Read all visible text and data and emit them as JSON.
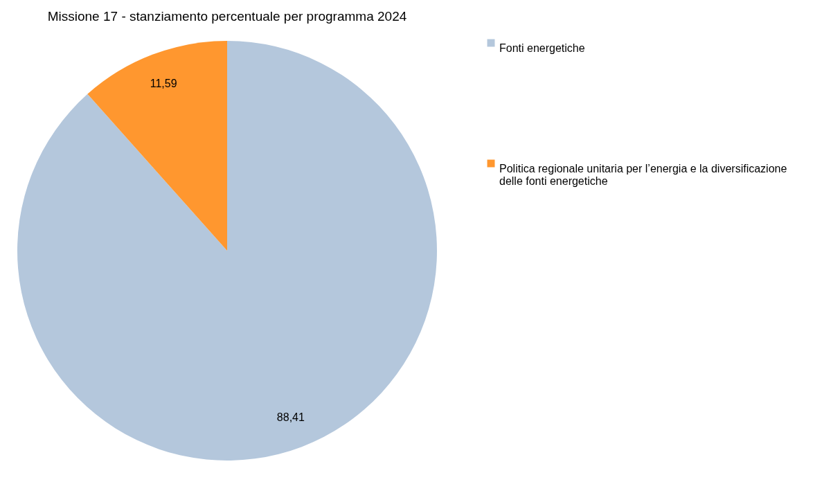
{
  "chart_data": {
    "type": "pie",
    "title": "Missione 17 - stanziamento percentuale per programma 2024",
    "categories": [
      "Fonti energetiche",
      "Politica regionale unitaria per l’energia e la diversificazione delle fonti energetiche"
    ],
    "values": [
      88.41,
      11.59
    ],
    "colors": [
      "#b4c7dc",
      "#ff972f"
    ],
    "value_labels": [
      "88,41",
      "11,59"
    ],
    "legend": "right"
  }
}
